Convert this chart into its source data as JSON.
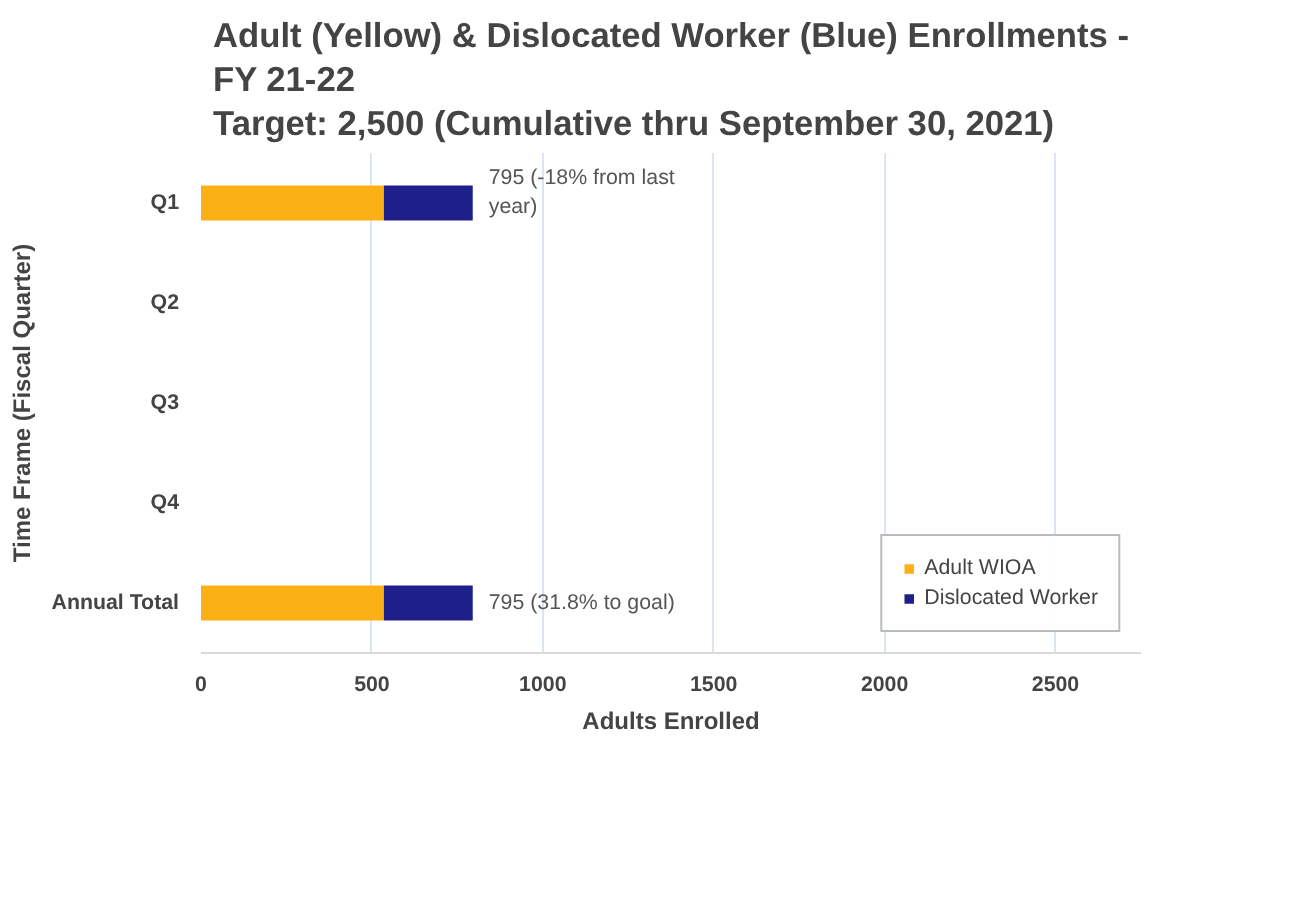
{
  "chart_data": {
    "type": "bar",
    "orientation": "horizontal",
    "stacked": true,
    "title": "Adult (Yellow) & Dislocated Worker (Blue) Enrollments -\nFY 21-22\nTarget: 2,500  (Cumulative thru September 30, 2021)",
    "xlabel": "Adults Enrolled",
    "ylabel": "Time Frame (Fiscal Quarter)",
    "categories": [
      "Q1",
      "Q2",
      "Q3",
      "Q4",
      "Annual Total"
    ],
    "series": [
      {
        "name": "Adult WIOA",
        "color": "#fbb116",
        "values": [
          535,
          null,
          null,
          null,
          535
        ]
      },
      {
        "name": "Dislocated Worker",
        "color": "#1f1f8c",
        "values": [
          260,
          null,
          null,
          null,
          260
        ]
      }
    ],
    "xlim": [
      0,
      2750
    ],
    "xticks": [
      0,
      500,
      1000,
      1500,
      2000,
      2500
    ],
    "grid": "x",
    "legend": "bottom right",
    "annotations": [
      {
        "text": "795 (-18% from last\nyear)",
        "x": 795,
        "y": "Q1"
      },
      {
        "text": "795 (31.8% to goal)",
        "x": 795,
        "y": "Annual Total"
      }
    ]
  }
}
